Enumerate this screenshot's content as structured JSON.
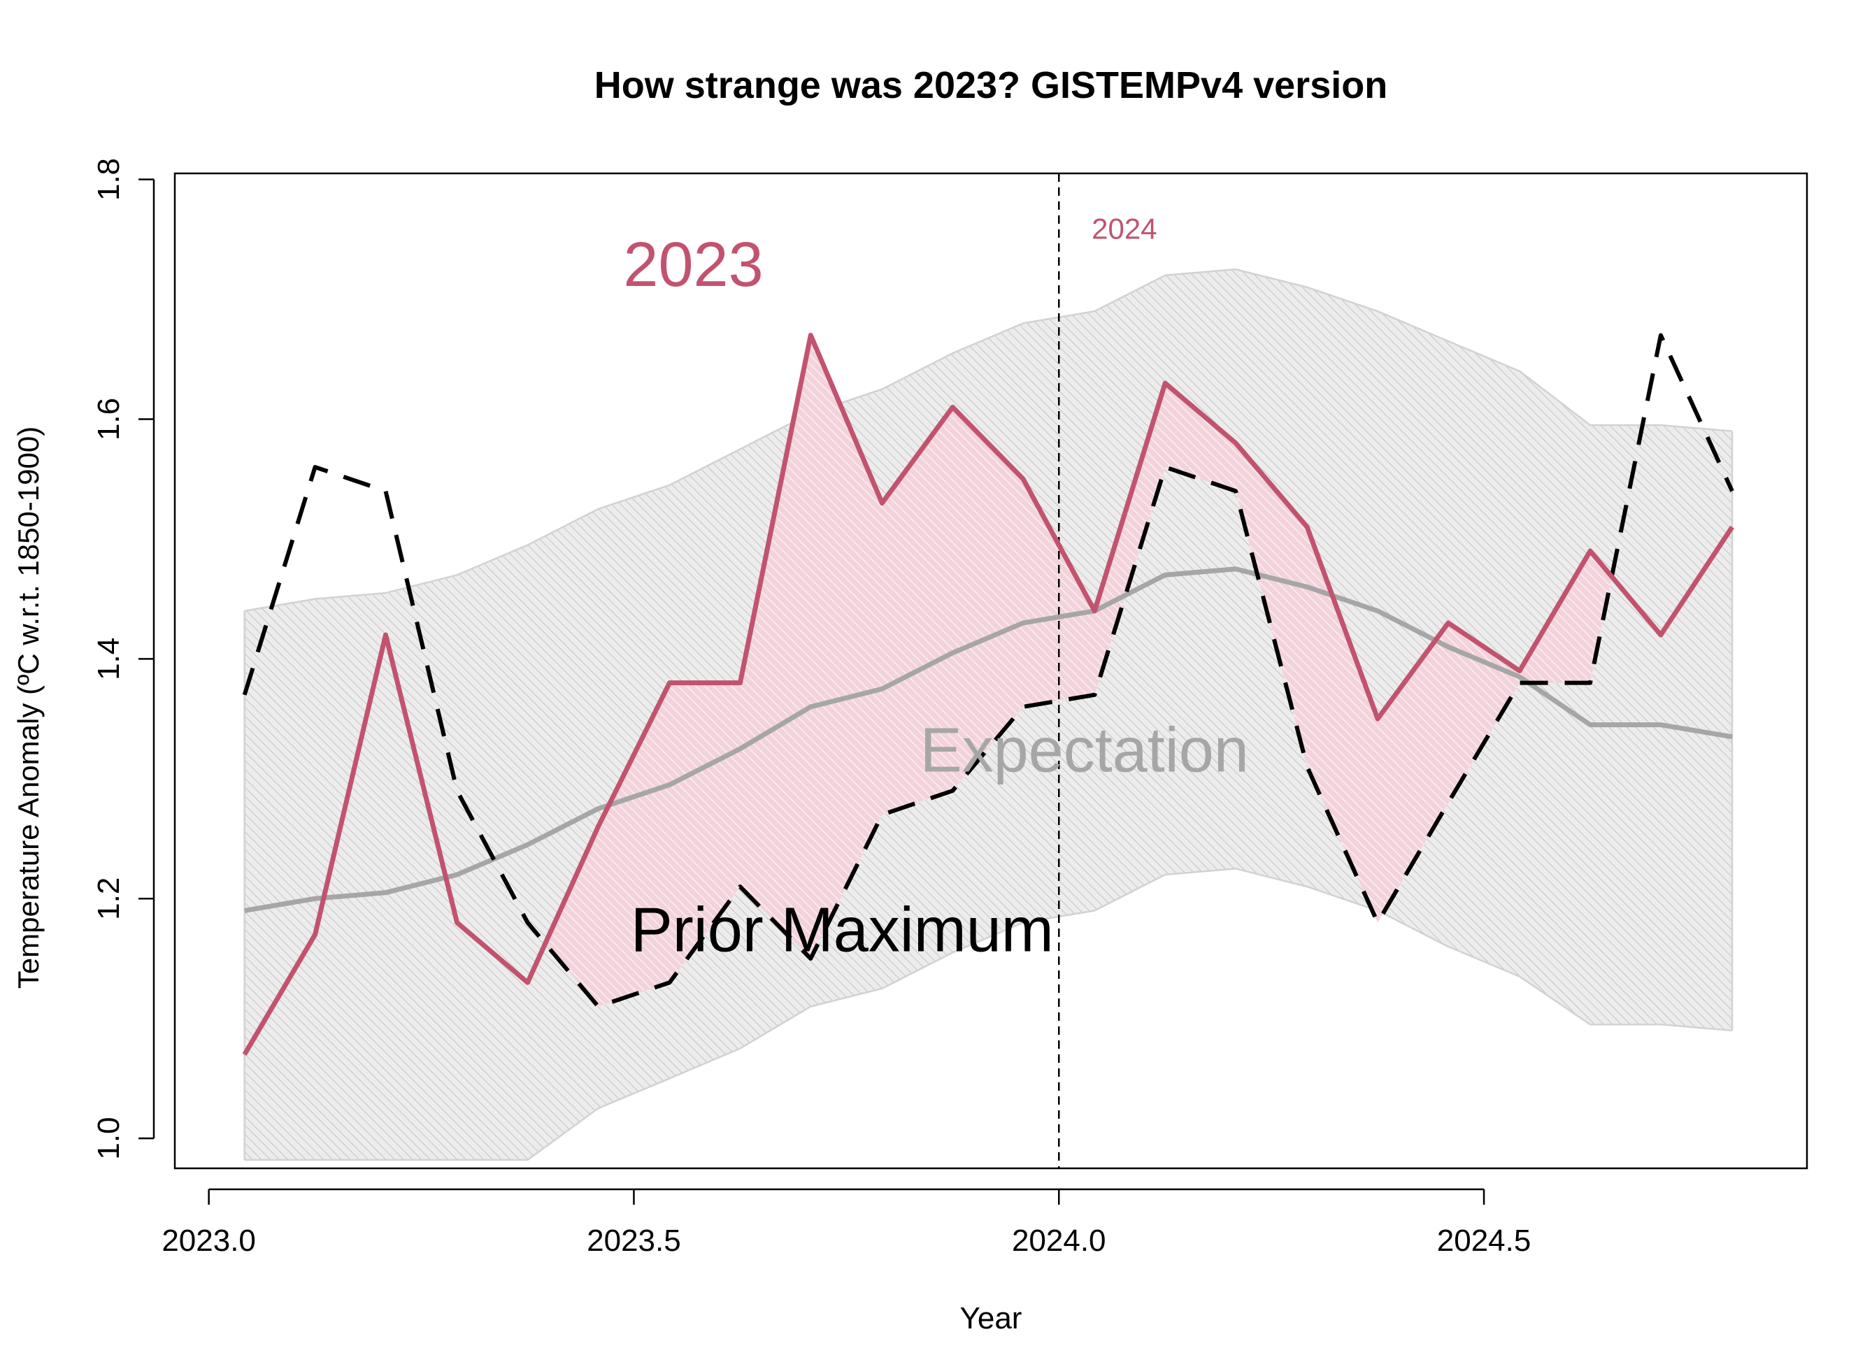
{
  "chart_data": {
    "type": "line",
    "title": "How strange was 2023? GISTEMPv4 version",
    "xlabel": "Year",
    "ylabel": "Temperature Anomaly (ºC w.r.t. 1850-1900)",
    "xlim": [
      2022.96,
      2024.88
    ],
    "ylim": [
      0.975,
      1.805
    ],
    "xticks": [
      2023.0,
      2023.5,
      2024.0,
      2024.5
    ],
    "xtick_labels": [
      "2023.0",
      "2023.5",
      "2024.0",
      "2024.5"
    ],
    "yticks": [
      1.0,
      1.2,
      1.4,
      1.6,
      1.8
    ],
    "ytick_labels": [
      "1.0",
      "1.2",
      "1.4",
      "1.6",
      "1.8"
    ],
    "grid": false,
    "x": [
      2023.042,
      2023.125,
      2023.208,
      2023.292,
      2023.375,
      2023.458,
      2023.542,
      2023.625,
      2023.708,
      2023.792,
      2023.875,
      2023.958,
      2024.042,
      2024.125,
      2024.208,
      2024.292,
      2024.375,
      2024.458,
      2024.542,
      2024.625,
      2024.708,
      2024.792
    ],
    "series": [
      {
        "label": "2023",
        "style": "solid",
        "color": "#c2536f",
        "values": [
          1.07,
          1.17,
          1.42,
          1.18,
          1.13,
          1.26,
          1.38,
          1.38,
          1.67,
          1.53,
          1.61,
          1.55,
          1.44,
          1.63,
          1.58,
          1.51,
          1.35,
          1.43,
          1.39,
          1.49,
          1.42,
          1.51
        ]
      },
      {
        "label": "Prior Maximum",
        "style": "dashed",
        "color": "#000000",
        "values": [
          1.37,
          1.56,
          1.54,
          1.29,
          1.18,
          1.11,
          1.13,
          1.21,
          1.15,
          1.27,
          1.29,
          1.36,
          1.37,
          1.56,
          1.54,
          1.31,
          1.18,
          1.28,
          1.38,
          1.38,
          1.67,
          1.54
        ]
      },
      {
        "label": "Expectation",
        "style": "solid",
        "color": "#a6a6a6",
        "values": [
          1.19,
          1.2,
          1.205,
          1.22,
          1.245,
          1.275,
          1.295,
          1.325,
          1.36,
          1.375,
          1.405,
          1.43,
          1.44,
          1.47,
          1.475,
          1.46,
          1.44,
          1.41,
          1.385,
          1.345,
          1.345,
          1.335
        ]
      }
    ],
    "expectation_band": {
      "upper": [
        1.44,
        1.45,
        1.455,
        1.47,
        1.495,
        1.525,
        1.545,
        1.575,
        1.605,
        1.625,
        1.655,
        1.68,
        1.69,
        1.72,
        1.725,
        1.71,
        1.69,
        1.665,
        1.64,
        1.595,
        1.595,
        1.59
      ],
      "lower": [
        0.982,
        0.982,
        0.982,
        0.982,
        0.982,
        1.025,
        1.05,
        1.075,
        1.11,
        1.125,
        1.155,
        1.18,
        1.19,
        1.22,
        1.225,
        1.21,
        1.19,
        1.16,
        1.135,
        1.095,
        1.095,
        1.09
      ]
    },
    "vline": {
      "x": 2024.0,
      "label": "2024",
      "style": "dashed"
    },
    "annotations": [
      {
        "text": "2023",
        "x": 2023.57,
        "y": 1.725,
        "color": "#c2536f"
      },
      {
        "text": "Expectation",
        "x": 2024.03,
        "y": 1.32,
        "color": "#a6a6a6"
      },
      {
        "text": "Prior Maximum",
        "x": 2023.745,
        "y": 1.17,
        "color": "#000000"
      },
      {
        "text": "2024",
        "x": 2024.077,
        "y": 1.757,
        "color": "#c2536f"
      }
    ],
    "colors": {
      "highlight": "#c2536f",
      "highlight_fill": "#f1d0d8",
      "band_fill": "#e9e9e9",
      "band_edge": "#d2d2d2",
      "expectation": "#a6a6a6",
      "prior_max": "#000000"
    }
  }
}
